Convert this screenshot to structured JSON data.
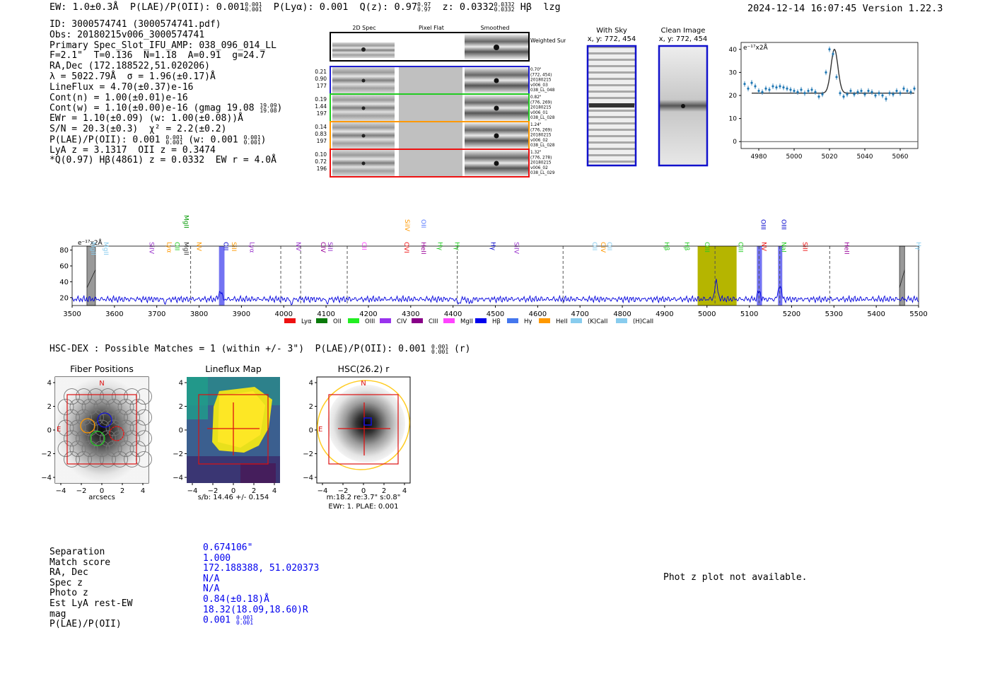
{
  "header": {
    "ew": "EW: 1.0±0.3Å",
    "plae_label": "P(LAE)/P(OII): 0.001",
    "plae_frac": [
      "0.001",
      "0.001"
    ],
    "plya": "P(Lyα): 0.001",
    "qz_label": "Q(z): 0.97",
    "qz_frac": [
      "0.97",
      "0.97"
    ],
    "z_label": "z: 0.0332",
    "z_frac": [
      "0.0332",
      "0.0332"
    ],
    "line_name": "Hβ",
    "flag": "lzg",
    "datetime": "2024-12-14 16:07:45",
    "version": "Version 1.22.3"
  },
  "info": {
    "id": "ID: 3000574741 (3000574741.pdf)",
    "obs": "Obs: 20180215v006_3000574741",
    "primary": "Primary Spec_Slot_IFU_AMP: 038_096_014_LL",
    "params": "F=2.1\"  T=0.136  N=1.18  A=0.91  g=24.7",
    "radec": "RA,Dec (172.188522,51.020206)",
    "lambda": "λ = 5022.79Å  σ = 1.96(±0.17)Å",
    "lineflux": "LineFlux = 4.70(±0.37)e-16",
    "contn": "Cont(n) = 1.00(±0.01)e-16",
    "contw": "Cont(w) = 1.10(±0.00)e-16 (gmag 19.08",
    "contw_frac": [
      "19.09",
      "19.08"
    ],
    "ewr": "EWr = 1.10(±0.09) (w: 1.00(±0.08))Å",
    "sn": "S/N = 20.3(±0.3)  χ² = 2.2(±0.2)",
    "plae": "P(LAE)/P(OII): 0.001",
    "plae_frac1": [
      "0.001",
      "0.001"
    ],
    "plae_w": " (w: 0.001",
    "plae_frac2": [
      "0.001",
      "0.001"
    ],
    "lya": "LyA z = 3.1317  OII z = 0.3474",
    "q": "*Q(0.97) Hβ(4861) z = 0.0332  EW r = 4.0Å"
  },
  "cutouts": {
    "col_titles": [
      "2D Spec",
      "Pixel Flat",
      "Smoothed"
    ],
    "weighted": "Weighted Sum",
    "rows": [
      {
        "color": "#1f1fd0",
        "meta": [
          "0.21",
          "0.90",
          "177"
        ],
        "right": [
          "0.70\"",
          "(772, 454)",
          "20180215",
          "v006_03",
          "038_LL_048"
        ]
      },
      {
        "color": "#22cc22",
        "meta": [
          "0.19",
          "1.44",
          "197"
        ],
        "right": [
          "0.82\"",
          "(776, 269)",
          "20180215",
          "v006_01",
          "038_LL_028"
        ]
      },
      {
        "color": "#ff9900",
        "meta": [
          "0.14",
          "0.83",
          "197"
        ],
        "right": [
          "1.24\"",
          "(776, 269)",
          "20180215",
          "v006_02",
          "038_LL_028"
        ]
      },
      {
        "color": "#ee1111",
        "meta": [
          "0.10",
          "0.72",
          "196"
        ],
        "right": [
          "1.32\"",
          "(776, 278)",
          "20180215",
          "v006_02",
          "038_LL_029"
        ]
      }
    ],
    "with_sky": [
      "With Sky",
      "x, y: 772, 454"
    ],
    "clean": [
      "Clean Image",
      "x, y: 772, 454"
    ]
  },
  "colors": {
    "spectrum": "#0000dd",
    "zoom_fit": "#333333",
    "zoom_points": "#1f77b4",
    "highlight": "#b5b500",
    "line_band": "#4444ee"
  },
  "chart_data": [
    {
      "type": "scatter",
      "title": "",
      "ylabel": "e⁻¹⁷x2Å",
      "xlim": [
        4970,
        5070
      ],
      "ylim": [
        -3,
        43
      ],
      "xticks": [
        4980,
        5000,
        5020,
        5040,
        5060
      ],
      "yticks": [
        0,
        10,
        20,
        30,
        40
      ],
      "x": [
        4972,
        4974,
        4976,
        4978,
        4980,
        4982,
        4984,
        4986,
        4988,
        4990,
        4992,
        4994,
        4996,
        4998,
        5000,
        5002,
        5004,
        5006,
        5008,
        5010,
        5012,
        5014,
        5016,
        5018,
        5020,
        5022,
        5024,
        5026,
        5028,
        5030,
        5032,
        5034,
        5036,
        5038,
        5040,
        5042,
        5044,
        5046,
        5048,
        5050,
        5052,
        5054,
        5056,
        5058,
        5060,
        5062,
        5064,
        5066,
        5068
      ],
      "y": [
        25,
        23,
        25.5,
        24,
        22,
        21.5,
        23,
        22.5,
        24,
        23.5,
        24,
        23.5,
        23,
        22.5,
        22,
        21.5,
        22.5,
        21,
        22,
        22.5,
        21.5,
        19.5,
        20.5,
        30,
        40,
        38,
        28,
        21,
        19.5,
        20.5,
        22,
        20.5,
        21.5,
        22,
        20.5,
        22,
        21.5,
        20,
        21,
        20,
        18.5,
        21,
        20.5,
        22,
        21,
        23,
        22,
        21.5,
        23
      ],
      "fit": {
        "baseline": 21,
        "peak_x": 5022.8,
        "amplitude": 19,
        "sigma": 1.96,
        "x_start": 4976,
        "x_end": 5068
      }
    },
    {
      "type": "line",
      "title": "",
      "ylabel": "e⁻¹⁷x2Å",
      "xlim": [
        3500,
        5500
      ],
      "ylim": [
        10,
        85
      ],
      "xticks": [
        3500,
        3600,
        3700,
        3800,
        3900,
        4000,
        4100,
        4200,
        4300,
        4400,
        4500,
        4600,
        4700,
        4800,
        4900,
        5000,
        5100,
        5200,
        5300,
        5400,
        5500
      ],
      "yticks": [
        20,
        40,
        60,
        80
      ],
      "baseline": 18,
      "peaks": [
        {
          "x": 3850,
          "h": 10
        },
        {
          "x": 5022,
          "h": 22
        },
        {
          "x": 5123,
          "h": 10
        },
        {
          "x": 5172,
          "h": 18
        }
      ],
      "dips": [
        {
          "x": 3720,
          "d": 4
        },
        {
          "x": 4018,
          "d": 5
        },
        {
          "x": 4102,
          "d": 4
        },
        {
          "x": 4413,
          "d": 6
        },
        {
          "x": 4440,
          "d": 5
        }
      ],
      "dashed_lines": [
        3780,
        3993,
        4040,
        4150,
        4410,
        4660,
        5019,
        5123,
        5172,
        5290
      ],
      "gray_bands": [
        [
          3535,
          3555
        ],
        [
          5455,
          5467
        ]
      ],
      "highlight_band": [
        4978,
        5070
      ],
      "line_bands": [
        [
          3847,
          3860
        ],
        [
          5118,
          5130
        ],
        [
          5168,
          5178
        ]
      ],
      "line_labels": [
        {
          "x": 3540,
          "name": "MgII",
          "color": "#88ccee",
          "row": 1
        },
        {
          "x": 3570,
          "name": "MgII",
          "color": "#88ccee",
          "row": 1
        },
        {
          "x": 3678,
          "name": "SiIV",
          "color": "#9933cc",
          "row": 0
        },
        {
          "x": 3720,
          "name": "Lyα",
          "color": "#ff9900",
          "row": 0
        },
        {
          "x": 3738,
          "name": "OII",
          "color": "#22cc22",
          "row": 0
        },
        {
          "x": 3760,
          "name": "MgII",
          "color": "#009900",
          "row": 2
        },
        {
          "x": 3760,
          "name": "MgII",
          "color": "#333333",
          "row": 0
        },
        {
          "x": 3790,
          "name": "NV",
          "color": "#ff9900",
          "row": 0
        },
        {
          "x": 3853,
          "name": "OII",
          "color": "#0000cc",
          "row": 0
        },
        {
          "x": 3873,
          "name": "SiII",
          "color": "#ff9900",
          "row": 0
        },
        {
          "x": 3915,
          "name": "Lyα",
          "color": "#9933cc",
          "row": 0
        },
        {
          "x": 4025,
          "name": "NV",
          "color": "#9933cc",
          "row": 0
        },
        {
          "x": 4083,
          "name": "CIV",
          "color": "#990099",
          "row": 0
        },
        {
          "x": 4100,
          "name": "SiII",
          "color": "#9933cc",
          "row": 0
        },
        {
          "x": 4180,
          "name": "CII",
          "color": "#ff44ff",
          "row": 0
        },
        {
          "x": 4280,
          "name": "OVI",
          "color": "#ee1111",
          "row": 0
        },
        {
          "x": 4282,
          "name": "SiIV",
          "color": "#ff9900",
          "row": 3
        },
        {
          "x": 4320,
          "name": "OII",
          "color": "#5577ff",
          "row": 3
        },
        {
          "x": 4320,
          "name": "HeII",
          "color": "#990099",
          "row": 0
        },
        {
          "x": 4360,
          "name": "Hγ",
          "color": "#22cc22",
          "row": 0
        },
        {
          "x": 4400,
          "name": "Hγ",
          "color": "#22cc22",
          "row": 0
        },
        {
          "x": 4485,
          "name": "Hγ",
          "color": "#0000cc",
          "row": 0
        },
        {
          "x": 4540,
          "name": "SiIV",
          "color": "#9933cc",
          "row": 0
        },
        {
          "x": 4725,
          "name": "OII",
          "color": "#88ccee",
          "row": 0
        },
        {
          "x": 4745,
          "name": "CIV",
          "color": "#ff9900",
          "row": 0
        },
        {
          "x": 4760,
          "name": "OII",
          "color": "#88ccee",
          "row": 0
        },
        {
          "x": 4895,
          "name": "Hβ",
          "color": "#22cc22",
          "row": 0
        },
        {
          "x": 4943,
          "name": "Hβ",
          "color": "#22cc22",
          "row": 0
        },
        {
          "x": 4990,
          "name": "OIII",
          "color": "#22cc22",
          "row": 0
        },
        {
          "x": 5070,
          "name": "OIII",
          "color": "#22cc22",
          "row": 0
        },
        {
          "x": 5125,
          "name": "NV",
          "color": "#ee1111",
          "row": 0
        },
        {
          "x": 5123,
          "name": "OIII",
          "color": "#0000cc",
          "row": 3
        },
        {
          "x": 5172,
          "name": "NaI",
          "color": "#22cc22",
          "row": 0
        },
        {
          "x": 5172,
          "name": "OIII",
          "color": "#0000cc",
          "row": 3
        },
        {
          "x": 5222,
          "name": "SiII",
          "color": "#ee1111",
          "row": 0
        },
        {
          "x": 5320,
          "name": "HeII",
          "color": "#990099",
          "row": 0
        },
        {
          "x": 5490,
          "name": "Hγ",
          "color": "#88ccee",
          "row": 0
        }
      ],
      "legend": [
        {
          "name": "Lyα",
          "color": "#ee1111"
        },
        {
          "name": "OII",
          "color": "#0a7a0a"
        },
        {
          "name": "OIII",
          "color": "#22ee22"
        },
        {
          "name": "CIV",
          "color": "#9933ee"
        },
        {
          "name": "CIII",
          "color": "#880088"
        },
        {
          "name": "MgII",
          "color": "#ff44ff"
        },
        {
          "name": "Hβ",
          "color": "#0000ee"
        },
        {
          "name": "Hγ",
          "color": "#4477ee"
        },
        {
          "name": "HeII",
          "color": "#ff9900"
        },
        {
          "name": "(K)CaII",
          "color": "#88ccee"
        },
        {
          "name": "(H)CaII",
          "color": "#88ccee"
        }
      ]
    }
  ],
  "hsc": {
    "line": "HSC-DEX : Possible Matches = 1 (within +/- 3\")  P(LAE)/P(OII): 0.001",
    "line_frac": [
      "0.001",
      "0.001"
    ],
    "line_suffix": "(r)",
    "panels": [
      {
        "title": "Fiber Positions",
        "xlabel": "arcsecs"
      },
      {
        "title": "Lineflux Map",
        "xlabel": "s/b: 14.46 +/- 0.154"
      },
      {
        "title": "HSC(26.2) r",
        "xlabel": "m:18.2  re:3.7\"  s:0.8\"",
        "xlabel2": "EWr: 1. PLAE: 0.001"
      }
    ],
    "ticks": [
      "4",
      "2",
      "0",
      "−2",
      "−4"
    ],
    "xticks": [
      "−4",
      "−2",
      "0",
      "2",
      "4"
    ],
    "north": "N",
    "east": "E"
  },
  "table": {
    "labels": [
      "Separation",
      "Match score",
      "RA, Dec",
      "Spec z",
      "Photo z",
      "Est LyA rest-EW",
      "mag",
      "P(LAE)/P(OII)"
    ],
    "values": [
      "0.674106\"",
      "1.000",
      "172.188388, 51.020373",
      "N/A",
      "N/A",
      "0.84(±0.18)Å",
      "18.32(18.09,18.60)R",
      "0.001"
    ],
    "plae_frac": [
      "0.001",
      "0.001"
    ]
  },
  "photz": "Phot z plot not available."
}
